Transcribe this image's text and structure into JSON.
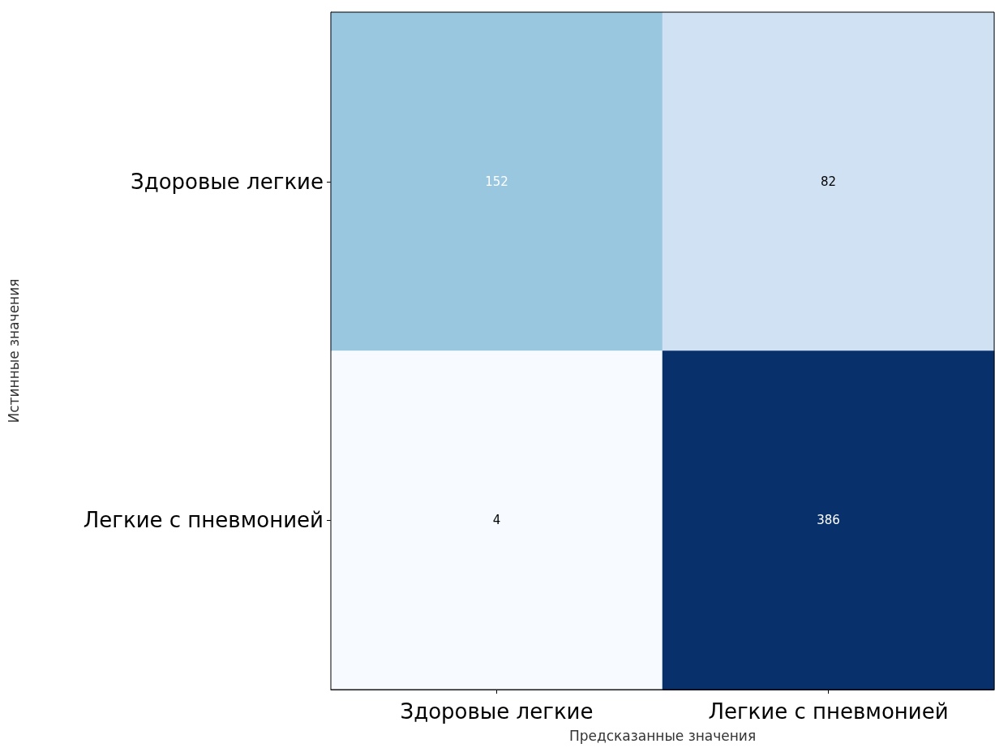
{
  "chart_data": {
    "type": "heatmap",
    "categories": [
      "Здоровые легкие",
      "Легкие с пневмонией"
    ],
    "y_categories": [
      "Здоровые легкие",
      "Легкие с пневмонией"
    ],
    "cells": [
      [
        152,
        82
      ],
      [
        4,
        386
      ]
    ],
    "data_labels": true,
    "xlabel": "Предсказанные значения",
    "ylabel": "Истинные значения"
  }
}
